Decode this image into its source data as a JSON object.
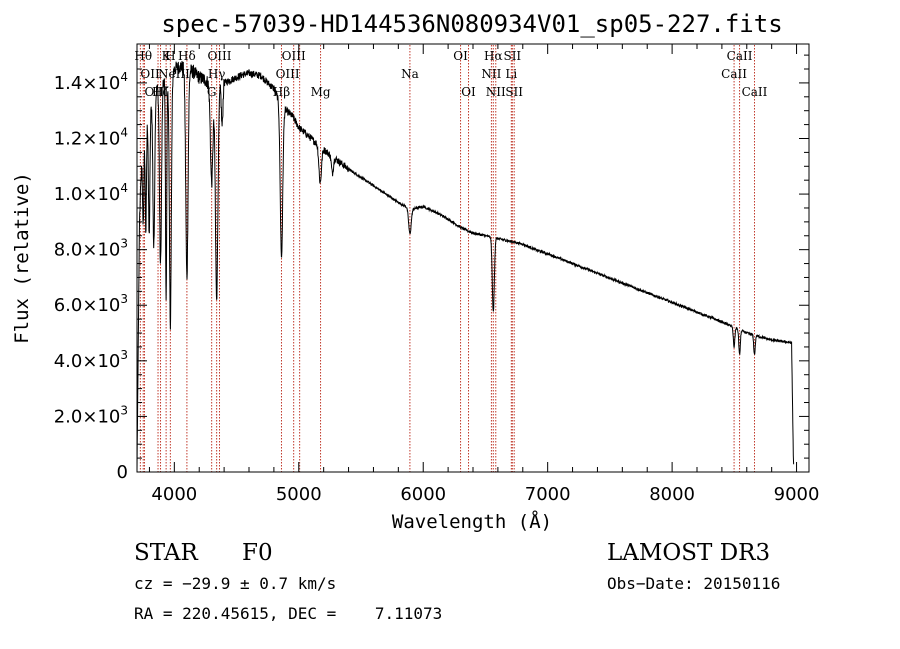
{
  "chart_data": {
    "type": "line",
    "title": "spec-57039-HD144536N080934V01_sp05-227.fits",
    "xlabel": "Wavelength (Å)",
    "ylabel": "Flux (relative)",
    "xlim": [
      3700,
      9100
    ],
    "ylim": [
      0,
      15400
    ],
    "x_ticks": [
      {
        "value": 4000,
        "label": "4000"
      },
      {
        "value": 5000,
        "label": "5000"
      },
      {
        "value": 6000,
        "label": "6000"
      },
      {
        "value": 7000,
        "label": "7000"
      },
      {
        "value": 8000,
        "label": "8000"
      },
      {
        "value": 9000,
        "label": "9000"
      }
    ],
    "y_ticks": [
      {
        "value": 0,
        "mantissa": "0",
        "exp": ""
      },
      {
        "value": 2000,
        "mantissa": "2.0×10",
        "exp": "3"
      },
      {
        "value": 4000,
        "mantissa": "4.0×10",
        "exp": "3"
      },
      {
        "value": 6000,
        "mantissa": "6.0×10",
        "exp": "3"
      },
      {
        "value": 8000,
        "mantissa": "8.0×10",
        "exp": "3"
      },
      {
        "value": 10000,
        "mantissa": "1.0×10",
        "exp": "4"
      },
      {
        "value": 12000,
        "mantissa": "1.2×10",
        "exp": "4"
      },
      {
        "value": 14000,
        "mantissa": "1.4×10",
        "exp": "4"
      }
    ],
    "continuum": {
      "x": [
        3700,
        3720,
        3740,
        3760,
        3780,
        3800,
        3830,
        3860,
        3900,
        3950,
        4000,
        4050,
        4100,
        4150,
        4200,
        4250,
        4300,
        4350,
        4400,
        4450,
        4500,
        4550,
        4600,
        4650,
        4700,
        4750,
        4800,
        4850,
        4900,
        4950,
        5000,
        5100,
        5200,
        5300,
        5400,
        5500,
        5600,
        5700,
        5800,
        5900,
        6000,
        6100,
        6200,
        6300,
        6400,
        6500,
        6600,
        6700,
        6800,
        6900,
        7000,
        7200,
        7400,
        7600,
        7800,
        8000,
        8200,
        8400,
        8600,
        8800,
        8960,
        8975
      ],
      "y": [
        0,
        9000,
        11500,
        12500,
        12800,
        13000,
        13500,
        13800,
        14000,
        14300,
        14500,
        14600,
        14500,
        14400,
        14200,
        14100,
        13900,
        13800,
        14000,
        14100,
        14200,
        14300,
        14350,
        14300,
        14250,
        14000,
        13800,
        13300,
        13000,
        12800,
        12400,
        12000,
        11600,
        11250,
        10900,
        10600,
        10300,
        10000,
        9700,
        9450,
        9550,
        9350,
        9100,
        8800,
        8600,
        8500,
        8400,
        8300,
        8200,
        8000,
        7850,
        7500,
        7150,
        6800,
        6450,
        6100,
        5750,
        5400,
        5000,
        4750,
        4650,
        300
      ]
    },
    "absorption": [
      {
        "x": 3750,
        "depth": 3000,
        "width": 6
      },
      {
        "x": 3771,
        "depth": 4000,
        "width": 5
      },
      {
        "x": 3798,
        "depth": 4500,
        "width": 6
      },
      {
        "x": 3835,
        "depth": 5500,
        "width": 7
      },
      {
        "x": 3889,
        "depth": 6500,
        "width": 8
      },
      {
        "x": 3934,
        "depth": 8000,
        "width": 5
      },
      {
        "x": 3968,
        "depth": 9000,
        "width": 8
      },
      {
        "x": 4101,
        "depth": 7500,
        "width": 9
      },
      {
        "x": 4300,
        "depth": 3500,
        "width": 10
      },
      {
        "x": 4340,
        "depth": 7500,
        "width": 10
      },
      {
        "x": 4384,
        "depth": 1500,
        "width": 6
      },
      {
        "x": 4861,
        "depth": 5500,
        "width": 10
      },
      {
        "x": 5172,
        "depth": 1300,
        "width": 10
      },
      {
        "x": 5270,
        "depth": 600,
        "width": 8
      },
      {
        "x": 5893,
        "depth": 900,
        "width": 10
      },
      {
        "x": 6563,
        "depth": 2700,
        "width": 8
      },
      {
        "x": 8498,
        "depth": 700,
        "width": 6
      },
      {
        "x": 8542,
        "depth": 900,
        "width": 6
      },
      {
        "x": 8662,
        "depth": 700,
        "width": 6
      }
    ],
    "lines": [
      {
        "x": 3750,
        "label": "Hθ",
        "row": 0,
        "lines_label_anchor": "middle"
      },
      {
        "x": 3727,
        "label": "OII",
        "row": 1,
        "lines_label_anchor": "start"
      },
      {
        "x": 3760,
        "label": "OIII",
        "row": 2,
        "lines_label_anchor": "start"
      },
      {
        "x": 3869,
        "label": "NeIII",
        "row": 1,
        "lines_label_anchor": "start"
      },
      {
        "x": 3934,
        "label": "K",
        "row": 0,
        "lines_label_anchor": "middle"
      },
      {
        "x": 3968,
        "label": "H",
        "row": 0,
        "lines_label_anchor": "middle"
      },
      {
        "x": 3889,
        "label": "Hζ",
        "row": 2,
        "lines_label_anchor": "middle"
      },
      {
        "x": 4101,
        "label": "Hδ",
        "row": 0,
        "lines_label_anchor": "middle"
      },
      {
        "x": 4300,
        "label": "G",
        "row": 2,
        "lines_label_anchor": "middle"
      },
      {
        "x": 4340,
        "label": "Hγ",
        "row": 1,
        "lines_label_anchor": "middle"
      },
      {
        "x": 4363,
        "label": "OIII",
        "row": 0,
        "lines_label_anchor": "middle"
      },
      {
        "x": 4861,
        "label": "Hβ",
        "row": 2,
        "lines_label_anchor": "middle"
      },
      {
        "x": 4959,
        "label": "OIII",
        "row": 0,
        "lines_label_anchor": "middle"
      },
      {
        "x": 5007,
        "label": "OIII",
        "row": 1,
        "lines_label_anchor": "end"
      },
      {
        "x": 5175,
        "label": "Mg",
        "row": 2,
        "lines_label_anchor": "middle"
      },
      {
        "x": 5893,
        "label": "Na",
        "row": 1,
        "lines_label_anchor": "middle"
      },
      {
        "x": 6300,
        "label": "OI",
        "row": 0,
        "lines_label_anchor": "middle"
      },
      {
        "x": 6364,
        "label": "OI",
        "row": 2,
        "lines_label_anchor": "middle"
      },
      {
        "x": 6548,
        "label": "NII",
        "row": 1,
        "lines_label_anchor": "middle"
      },
      {
        "x": 6563,
        "label": "Hα",
        "row": 0,
        "lines_label_anchor": "middle"
      },
      {
        "x": 6583,
        "label": "NII",
        "row": 2,
        "lines_label_anchor": "middle"
      },
      {
        "x": 6708,
        "label": "Li",
        "row": 1,
        "lines_label_anchor": "middle"
      },
      {
        "x": 6716,
        "label": "SII",
        "row": 0,
        "lines_label_anchor": "middle"
      },
      {
        "x": 6731,
        "label": "SII",
        "row": 2,
        "lines_label_anchor": "middle"
      },
      {
        "x": 8498,
        "label": "CaII",
        "row": 1,
        "lines_label_anchor": "middle"
      },
      {
        "x": 8542,
        "label": "CaII",
        "row": 0,
        "lines_label_anchor": "middle"
      },
      {
        "x": 8662,
        "label": "CaII",
        "row": 2,
        "lines_label_anchor": "middle"
      }
    ],
    "colors": {
      "spectrum": "#000000",
      "lines": "#c0392b",
      "axes": "#000000"
    }
  },
  "info": {
    "class": "STAR",
    "subclass": "F0",
    "survey": "LAMOST DR3",
    "cz": "cz = −29.9 ± 0.7 km/s",
    "obs_date": "Obs−Date: 20150116",
    "radec": "RA = 220.45615, DEC =    7.11073"
  }
}
